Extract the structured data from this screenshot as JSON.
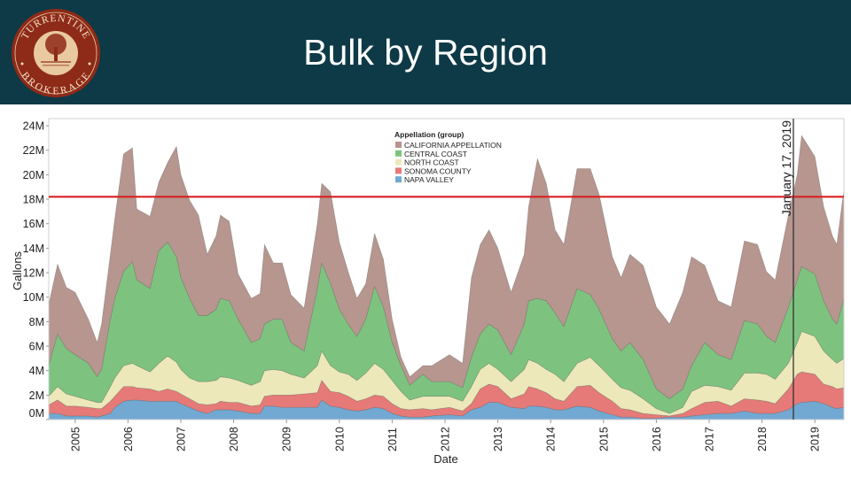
{
  "header": {
    "title": "Bulk by Region",
    "logo_text_top": "TURRENTINE",
    "logo_text_bottom": "BROKERAGE",
    "background": "#0d3a46"
  },
  "chart_data": {
    "type": "area",
    "stacked": true,
    "xlabel": "Date",
    "ylabel": "Gallons",
    "ylim": [
      0,
      24000000
    ],
    "yticks": [
      "0M",
      "2M",
      "4M",
      "6M",
      "8M",
      "10M",
      "12M",
      "14M",
      "16M",
      "18M",
      "20M",
      "22M",
      "24M"
    ],
    "xticks": [
      "2005",
      "2006",
      "2007",
      "2008",
      "2009",
      "2010",
      "2011",
      "2012",
      "2013",
      "2014",
      "2015",
      "2016",
      "2017",
      "2018",
      "2019"
    ],
    "grid": false,
    "legend": {
      "title": "Appellation (group)",
      "placement": "top-center"
    },
    "reference_line": {
      "value": 18200000,
      "color": "#d62020"
    },
    "date_marker": {
      "label": "January 17, 2019",
      "date": "2019-01-17"
    },
    "unit": "M gallons",
    "x": [
      "2005-01",
      "2005-03",
      "2005-05",
      "2005-07",
      "2005-10",
      "2005-12",
      "2006-01",
      "2006-03",
      "2006-04",
      "2006-06",
      "2006-08",
      "2006-09",
      "2006-12",
      "2007-02",
      "2007-04",
      "2007-06",
      "2007-07",
      "2007-09",
      "2007-11",
      "2008-01",
      "2008-03",
      "2008-04",
      "2008-06",
      "2008-08",
      "2008-11",
      "2009-01",
      "2009-02",
      "2009-04",
      "2009-06",
      "2009-08",
      "2009-11",
      "2010-02",
      "2010-03",
      "2010-05",
      "2010-07",
      "2010-09",
      "2010-11",
      "2011-01",
      "2011-03",
      "2011-05",
      "2011-07",
      "2011-09",
      "2011-11",
      "2012-02",
      "2012-04",
      "2012-08",
      "2012-11",
      "2013-01",
      "2013-03",
      "2013-05",
      "2013-07",
      "2013-10",
      "2014-01",
      "2014-02",
      "2014-04",
      "2014-06",
      "2014-08",
      "2014-10",
      "2015-01",
      "2015-04",
      "2015-06",
      "2015-09",
      "2015-11",
      "2016-01",
      "2016-04",
      "2016-07",
      "2016-10",
      "2017-01",
      "2017-03",
      "2017-06",
      "2017-09",
      "2017-12",
      "2018-03",
      "2018-06",
      "2018-08",
      "2018-10",
      "2019-01",
      "2019-03",
      "2019-04",
      "2019-07",
      "2019-09",
      "2019-11",
      "2019-12",
      "2020-01"
    ],
    "series": [
      {
        "name": "NAPA VALLEY",
        "color": "#72a9d3",
        "values": [
          0.5,
          0.5,
          0.3,
          0.3,
          0.3,
          0.2,
          0.3,
          0.5,
          1.0,
          1.5,
          1.6,
          1.6,
          1.5,
          1.5,
          1.5,
          1.5,
          1.3,
          1.0,
          0.7,
          0.5,
          0.8,
          0.8,
          0.8,
          0.7,
          0.5,
          0.5,
          1.1,
          1.1,
          1.0,
          1.0,
          1.0,
          1.0,
          1.6,
          1.1,
          1.0,
          0.8,
          0.7,
          0.8,
          1.0,
          0.9,
          0.5,
          0.3,
          0.2,
          0.2,
          0.3,
          0.4,
          0.3,
          0.8,
          1.0,
          1.4,
          1.4,
          1.0,
          0.9,
          1.1,
          1.1,
          1.0,
          0.8,
          0.8,
          1.1,
          1.0,
          0.7,
          0.4,
          0.2,
          0.2,
          0.1,
          0.1,
          0.2,
          0.2,
          0.3,
          0.4,
          0.5,
          0.5,
          0.7,
          0.5,
          0.5,
          0.5,
          0.8,
          1.3,
          1.4,
          1.5,
          1.3,
          1.0,
          0.9,
          1.0
        ]
      },
      {
        "name": "SONOMA COUNTY",
        "color": "#e67a78",
        "values": [
          0.7,
          1.1,
          0.8,
          0.8,
          0.7,
          0.7,
          0.6,
          1.0,
          0.9,
          1.2,
          1.1,
          1.0,
          1.0,
          0.8,
          1.0,
          0.8,
          0.8,
          0.7,
          0.6,
          0.7,
          0.5,
          0.7,
          0.6,
          0.7,
          0.6,
          0.7,
          0.8,
          0.9,
          1.0,
          1.0,
          1.1,
          1.2,
          1.6,
          1.2,
          1.2,
          1.1,
          0.8,
          0.9,
          1.0,
          1.0,
          0.8,
          0.6,
          0.6,
          0.7,
          0.5,
          0.6,
          0.4,
          0.5,
          1.5,
          1.5,
          1.3,
          0.7,
          1.2,
          1.6,
          1.4,
          1.2,
          0.9,
          0.7,
          1.6,
          1.8,
          1.5,
          1.1,
          0.7,
          0.6,
          0.4,
          0.3,
          0.1,
          0.3,
          0.6,
          1.0,
          1.0,
          0.6,
          1.0,
          1.1,
          1.0,
          0.8,
          1.7,
          2.4,
          2.5,
          2.2,
          1.6,
          1.7,
          1.6,
          1.6
        ]
      },
      {
        "name": "NORTH COAST",
        "color": "#ece8b9",
        "values": [
          0.7,
          1.1,
          1.0,
          0.8,
          0.6,
          0.5,
          0.5,
          1.2,
          1.5,
          1.7,
          1.9,
          1.8,
          1.4,
          2.3,
          2.7,
          2.4,
          2.0,
          1.7,
          1.8,
          1.9,
          1.9,
          2.0,
          2.0,
          1.8,
          1.7,
          1.9,
          2.1,
          2.1,
          2.0,
          1.7,
          1.3,
          2.2,
          2.4,
          2.1,
          1.7,
          1.8,
          1.7,
          2.1,
          2.6,
          2.2,
          1.9,
          1.4,
          0.8,
          1.0,
          1.1,
          0.9,
          0.8,
          1.4,
          1.6,
          1.7,
          1.4,
          1.4,
          2.0,
          2.2,
          2.1,
          1.9,
          2.0,
          1.6,
          1.9,
          2.3,
          2.2,
          1.8,
          1.7,
          1.6,
          1.2,
          0.5,
          0.2,
          0.5,
          1.4,
          1.4,
          1.2,
          1.3,
          2.1,
          2.2,
          2.2,
          2.0,
          2.1,
          2.6,
          3.3,
          3.1,
          2.7,
          2.2,
          2.1,
          2.4
        ]
      },
      {
        "name": "CENTRAL COAST",
        "color": "#7dc37f",
        "values": [
          2.5,
          4.3,
          3.7,
          3.4,
          3.0,
          2.1,
          2.7,
          5.5,
          6.5,
          7.7,
          8.3,
          7.0,
          6.8,
          9.2,
          9.3,
          8.6,
          7.5,
          6.5,
          5.4,
          5.4,
          5.8,
          6.4,
          6.3,
          5.0,
          3.5,
          3.5,
          3.8,
          4.1,
          4.2,
          2.6,
          2.2,
          6.3,
          7.2,
          6.7,
          5.1,
          4.1,
          3.6,
          4.4,
          6.3,
          5.1,
          3.1,
          2.1,
          1.2,
          1.8,
          1.2,
          1.2,
          1.1,
          2.4,
          2.9,
          3.2,
          3.2,
          2.2,
          3.7,
          4.8,
          5.3,
          5.6,
          5.0,
          4.5,
          6.1,
          5.1,
          4.6,
          3.3,
          3.0,
          3.9,
          3.2,
          1.6,
          1.2,
          1.5,
          2.1,
          3.5,
          2.6,
          2.5,
          4.3,
          4.0,
          3.1,
          3.0,
          4.6,
          5.1,
          5.3,
          5.1,
          4.1,
          3.3,
          3.2,
          4.9
        ]
      },
      {
        "name": "CALIFORNIA APPELLATION",
        "color": "#b6968e",
        "values": [
          5.0,
          5.7,
          5.0,
          5.1,
          3.6,
          2.8,
          3.7,
          5.3,
          6.5,
          9.6,
          9.3,
          5.8,
          5.9,
          5.6,
          6.5,
          9.0,
          8.4,
          8.0,
          8.2,
          5.0,
          6.0,
          6.8,
          6.5,
          3.7,
          3.6,
          3.7,
          6.5,
          4.6,
          4.6,
          3.9,
          3.5,
          5.3,
          6.5,
          7.5,
          5.5,
          4.3,
          3.1,
          2.9,
          4.3,
          3.9,
          1.9,
          0.7,
          0.7,
          0.7,
          1.3,
          2.2,
          2.0,
          6.5,
          7.3,
          7.7,
          6.7,
          5.1,
          5.7,
          7.7,
          11.4,
          9.6,
          6.8,
          6.7,
          9.8,
          10.3,
          9.4,
          6.7,
          6.0,
          7.2,
          7.7,
          6.7,
          6.1,
          7.9,
          8.9,
          6.3,
          4.4,
          4.3,
          6.5,
          6.5,
          5.3,
          5.1,
          7.5,
          8.6,
          10.7,
          9.6,
          7.7,
          6.8,
          6.5,
          8.9
        ]
      }
    ]
  }
}
